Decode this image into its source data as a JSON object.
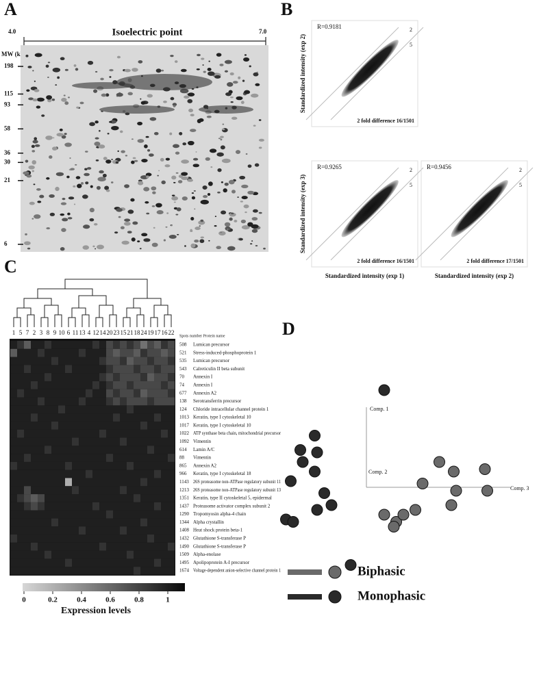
{
  "panel_a": {
    "label": "A",
    "title": "Isoelectric point",
    "ph_range": [
      "4.0",
      "7.0"
    ],
    "mw_label": "MW (kDa)",
    "mw_ticks": [
      198,
      115,
      93,
      58,
      36,
      30,
      21,
      6
    ],
    "mw_lim": [
      6,
      198
    ]
  },
  "panel_b": {
    "label": "B",
    "plots": [
      {
        "r_label": "R=0.9181",
        "fold_label": "2 fold difference 16/1501",
        "y_label": "Standardized intensity (exp 2)",
        "line_labels": [
          "2",
          "5"
        ]
      },
      {
        "r_label": "R=0.9265",
        "fold_label": "2 fold difference 16/1501",
        "y_label": "Standardized intensity (exp 3)",
        "x_label": "Standardized intensity (exp 1)",
        "line_labels": [
          "2",
          "5"
        ]
      },
      {
        "r_label": "R=0.9456",
        "fold_label": "2 fold difference 17/1501",
        "x_label": "Standardized intensity (exp 2)",
        "line_labels": [
          "2",
          "5"
        ]
      }
    ]
  },
  "panel_c": {
    "label": "C",
    "samples": [
      "1",
      "5",
      "7",
      "2",
      "3",
      "8",
      "9",
      "10",
      "6",
      "11",
      "13",
      "4",
      "12",
      "14",
      "20",
      "23",
      "15",
      "21",
      "18",
      "24",
      "19",
      "17",
      "16",
      "22"
    ],
    "header": "Spots number Protein name",
    "proteins": [
      {
        "spot": "508",
        "name": "Lumican precursor"
      },
      {
        "spot": "521",
        "name": "Stress-induced-phosphoprotein 1"
      },
      {
        "spot": "535",
        "name": "Lumican precursor"
      },
      {
        "spot": "543",
        "name": "Calreticulin II beta subunit"
      },
      {
        "spot": "70",
        "name": "Annexin I"
      },
      {
        "spot": "74",
        "name": "Annexin I"
      },
      {
        "spot": "677",
        "name": "Annexin A2"
      },
      {
        "spot": "138",
        "name": "Serotransferrin precursor"
      },
      {
        "spot": "124",
        "name": "Chloride intracellular channel protein 1"
      },
      {
        "spot": "1013",
        "name": "Keratin, type I cytoskeletal 10"
      },
      {
        "spot": "1017",
        "name": "Keratin, type I cytoskeletal 10"
      },
      {
        "spot": "1022",
        "name": "ATP synthase beta chain, mitochondrial precursor"
      },
      {
        "spot": "1092",
        "name": "Vimentin"
      },
      {
        "spot": "614",
        "name": "Lamin A/C"
      },
      {
        "spot": "88",
        "name": "Vimentin"
      },
      {
        "spot": "865",
        "name": "Annexin A2"
      },
      {
        "spot": "966",
        "name": "Keratin, type I cytoskeletal 18"
      },
      {
        "spot": "1143",
        "name": "26S proteasome non-ATPase regulatory subunit 11"
      },
      {
        "spot": "1213",
        "name": "26S proteasome non-ATPase regulatory subunit 13"
      },
      {
        "spot": "1351",
        "name": "Keratin, type II cytoskeletal 5, epidermal"
      },
      {
        "spot": "1437",
        "name": "Proteasome activator complex subunit 2"
      },
      {
        "spot": "1290",
        "name": "Tropomyosin alpha-4 chain"
      },
      {
        "spot": "1344",
        "name": "Alpha crystallin"
      },
      {
        "spot": "1408",
        "name": "Heat shock protein beta-1"
      },
      {
        "spot": "1432",
        "name": "Glutathione S-transferase P"
      },
      {
        "spot": "1490",
        "name": "Glutathione S-transferase P"
      },
      {
        "spot": "1509",
        "name": "Alpha-enolase"
      },
      {
        "spot": "1495",
        "name": "Apolipoprotein A-I precursor"
      },
      {
        "spot": "1674",
        "name": "Voltage-dependent anion-selective channel protein 1"
      }
    ],
    "values": [
      [
        0.9,
        0.8,
        0.6,
        0.9,
        0.9,
        0.8,
        0.9,
        0.9,
        0.9,
        0.9,
        0.9,
        0.9,
        0.8,
        0.9,
        0.7,
        0.8,
        0.7,
        0.8,
        0.7,
        0.5,
        0.7,
        0.6,
        0.8,
        0.7
      ],
      [
        0.6,
        0.9,
        0.9,
        0.9,
        0.8,
        0.9,
        0.9,
        0.9,
        0.9,
        0.9,
        0.8,
        0.9,
        0.9,
        0.9,
        0.7,
        0.6,
        0.7,
        0.7,
        0.6,
        0.8,
        0.7,
        0.7,
        0.6,
        0.7
      ],
      [
        0.9,
        0.9,
        0.9,
        0.9,
        0.9,
        0.9,
        0.8,
        0.9,
        0.9,
        0.9,
        0.9,
        0.9,
        0.9,
        0.8,
        0.7,
        0.7,
        0.8,
        0.6,
        0.7,
        0.7,
        0.8,
        0.7,
        0.7,
        0.8
      ],
      [
        0.9,
        0.9,
        0.8,
        0.9,
        0.9,
        0.9,
        0.9,
        0.9,
        0.8,
        0.9,
        0.9,
        0.9,
        0.9,
        0.9,
        0.8,
        0.7,
        0.7,
        0.7,
        0.8,
        0.7,
        0.7,
        0.8,
        0.7,
        0.7
      ],
      [
        0.9,
        0.9,
        0.9,
        0.9,
        0.9,
        0.8,
        0.9,
        0.9,
        0.9,
        0.9,
        0.9,
        0.9,
        0.9,
        0.8,
        0.7,
        0.8,
        0.7,
        0.7,
        0.7,
        0.8,
        0.6,
        0.7,
        0.7,
        0.8
      ],
      [
        0.9,
        0.9,
        0.9,
        0.8,
        0.9,
        0.9,
        0.9,
        0.9,
        0.9,
        0.9,
        0.9,
        0.9,
        0.8,
        0.9,
        0.8,
        0.7,
        0.7,
        0.8,
        0.7,
        0.7,
        0.7,
        0.7,
        0.8,
        0.7
      ],
      [
        0.9,
        0.8,
        0.9,
        0.9,
        0.9,
        0.9,
        0.9,
        0.9,
        0.9,
        0.9,
        0.9,
        0.8,
        0.9,
        0.9,
        0.7,
        0.8,
        0.7,
        0.7,
        0.8,
        0.6,
        0.7,
        0.7,
        0.7,
        0.8
      ],
      [
        0.9,
        0.9,
        0.9,
        0.9,
        0.8,
        0.9,
        0.9,
        0.9,
        0.9,
        0.9,
        0.8,
        0.9,
        0.9,
        0.9,
        0.8,
        0.7,
        0.8,
        0.7,
        0.7,
        0.7,
        0.8,
        0.7,
        0.7,
        0.7
      ],
      [
        0.9,
        0.9,
        0.9,
        0.9,
        0.9,
        0.9,
        0.9,
        0.8,
        0.9,
        0.9,
        0.9,
        0.9,
        0.9,
        0.9,
        0.9,
        0.9,
        0.9,
        0.8,
        0.9,
        0.9,
        0.9,
        0.9,
        0.9,
        0.9
      ],
      [
        0.9,
        0.9,
        0.9,
        0.8,
        0.9,
        0.9,
        0.9,
        0.9,
        0.9,
        0.9,
        0.9,
        0.9,
        0.9,
        0.9,
        0.9,
        0.8,
        0.9,
        0.9,
        0.9,
        0.9,
        0.9,
        0.8,
        0.9,
        0.9
      ],
      [
        0.9,
        0.9,
        0.9,
        0.9,
        0.9,
        0.9,
        0.8,
        0.9,
        0.9,
        0.9,
        0.9,
        0.9,
        0.9,
        0.9,
        0.9,
        0.9,
        0.9,
        0.9,
        0.9,
        0.8,
        0.9,
        0.9,
        0.9,
        0.9
      ],
      [
        0.9,
        0.8,
        0.9,
        0.9,
        0.9,
        0.9,
        0.9,
        0.9,
        0.9,
        0.9,
        0.9,
        0.9,
        0.9,
        0.8,
        0.9,
        0.9,
        0.9,
        0.9,
        0.9,
        0.9,
        0.9,
        0.9,
        0.8,
        0.9
      ],
      [
        0.9,
        0.9,
        0.9,
        0.9,
        0.9,
        0.9,
        0.9,
        0.9,
        0.9,
        0.8,
        0.9,
        0.9,
        0.9,
        0.9,
        0.9,
        0.9,
        0.8,
        0.9,
        0.9,
        0.9,
        0.9,
        0.9,
        0.9,
        0.9
      ],
      [
        0.9,
        0.9,
        0.9,
        0.9,
        0.9,
        0.8,
        0.9,
        0.9,
        0.9,
        0.9,
        0.9,
        0.9,
        0.9,
        0.9,
        0.9,
        0.9,
        0.9,
        0.9,
        0.9,
        0.9,
        0.8,
        0.9,
        0.9,
        0.9
      ],
      [
        0.9,
        0.9,
        0.8,
        0.9,
        0.9,
        0.9,
        0.9,
        0.9,
        0.9,
        0.9,
        0.9,
        0.9,
        0.9,
        0.9,
        0.8,
        0.9,
        0.9,
        0.9,
        0.9,
        0.9,
        0.9,
        0.9,
        0.9,
        0.8
      ],
      [
        0.8,
        0.9,
        0.9,
        0.9,
        0.9,
        0.9,
        0.9,
        0.9,
        0.8,
        0.9,
        0.9,
        0.9,
        0.9,
        0.9,
        0.9,
        0.9,
        0.9,
        0.8,
        0.9,
        0.9,
        0.9,
        0.9,
        0.9,
        0.9
      ],
      [
        0.9,
        0.9,
        0.9,
        0.9,
        0.9,
        0.9,
        0.9,
        0.9,
        0.9,
        0.9,
        0.9,
        0.8,
        0.9,
        0.9,
        0.9,
        0.9,
        0.9,
        0.9,
        0.9,
        0.9,
        0.9,
        0.8,
        0.9,
        0.9
      ],
      [
        0.9,
        0.9,
        0.9,
        0.9,
        0.9,
        0.9,
        0.9,
        0.9,
        0.2,
        0.9,
        0.9,
        0.9,
        0.9,
        0.9,
        0.9,
        0.9,
        0.9,
        0.9,
        0.9,
        0.8,
        0.9,
        0.9,
        0.9,
        0.9
      ],
      [
        0.9,
        0.9,
        0.7,
        0.9,
        0.9,
        0.9,
        0.9,
        0.9,
        0.9,
        0.8,
        0.9,
        0.9,
        0.9,
        0.9,
        0.9,
        0.9,
        0.8,
        0.9,
        0.9,
        0.9,
        0.9,
        0.9,
        0.9,
        0.9
      ],
      [
        0.9,
        0.8,
        0.7,
        0.6,
        0.7,
        0.9,
        0.9,
        0.9,
        0.9,
        0.9,
        0.9,
        0.9,
        0.9,
        0.9,
        0.9,
        0.9,
        0.9,
        0.9,
        0.8,
        0.9,
        0.9,
        0.9,
        0.9,
        0.9
      ],
      [
        0.9,
        0.9,
        0.8,
        0.7,
        0.8,
        0.9,
        0.9,
        0.9,
        0.9,
        0.9,
        0.9,
        0.9,
        0.8,
        0.9,
        0.9,
        0.9,
        0.9,
        0.9,
        0.9,
        0.9,
        0.9,
        0.8,
        0.9,
        0.9
      ],
      [
        0.9,
        0.9,
        0.9,
        0.9,
        0.9,
        0.9,
        0.9,
        0.9,
        0.9,
        0.9,
        0.9,
        0.9,
        0.9,
        0.9,
        0.8,
        0.9,
        0.9,
        0.9,
        0.9,
        0.9,
        0.9,
        0.9,
        0.9,
        0.9
      ],
      [
        0.9,
        0.9,
        0.9,
        0.9,
        0.9,
        0.9,
        0.8,
        0.9,
        0.9,
        0.9,
        0.9,
        0.9,
        0.9,
        0.9,
        0.9,
        0.9,
        0.9,
        0.9,
        0.9,
        0.8,
        0.9,
        0.9,
        0.9,
        0.9
      ],
      [
        0.9,
        0.9,
        0.9,
        0.9,
        0.9,
        0.9,
        0.9,
        0.9,
        0.9,
        0.9,
        0.8,
        0.9,
        0.9,
        0.9,
        0.9,
        0.9,
        0.8,
        0.9,
        0.9,
        0.9,
        0.9,
        0.9,
        0.9,
        0.9
      ],
      [
        0.8,
        0.9,
        0.9,
        0.9,
        0.9,
        0.9,
        0.9,
        0.9,
        0.9,
        0.9,
        0.9,
        0.9,
        0.9,
        0.9,
        0.9,
        0.9,
        0.9,
        0.9,
        0.9,
        0.9,
        0.8,
        0.9,
        0.9,
        0.9
      ],
      [
        0.9,
        0.9,
        0.9,
        0.8,
        0.9,
        0.9,
        0.9,
        0.9,
        0.9,
        0.9,
        0.9,
        0.9,
        0.9,
        0.8,
        0.9,
        0.9,
        0.9,
        0.9,
        0.9,
        0.9,
        0.9,
        0.9,
        0.9,
        0.8
      ],
      [
        0.9,
        0.9,
        0.9,
        0.9,
        0.9,
        0.8,
        0.9,
        0.9,
        0.9,
        0.9,
        0.9,
        0.9,
        0.9,
        0.9,
        0.9,
        0.9,
        0.9,
        0.8,
        0.9,
        0.9,
        0.9,
        0.9,
        0.9,
        0.9
      ],
      [
        0.9,
        0.9,
        0.9,
        0.9,
        0.9,
        0.9,
        0.9,
        0.9,
        0.8,
        0.9,
        0.9,
        0.9,
        0.9,
        0.9,
        0.9,
        0.9,
        0.9,
        0.9,
        0.9,
        0.9,
        0.9,
        0.8,
        0.9,
        0.9
      ],
      [
        0.9,
        0.9,
        0.9,
        0.9,
        0.9,
        0.9,
        0.9,
        0.9,
        0.9,
        0.9,
        0.9,
        0.9,
        0.9,
        0.9,
        0.9,
        0.9,
        0.9,
        0.9,
        0.8,
        0.9,
        0.9,
        0.9,
        0.9,
        0.9
      ]
    ],
    "colorbar": {
      "label": "Expression levels",
      "lim": [
        0,
        1
      ],
      "ticks": [
        0,
        0.2,
        0.4,
        0.6,
        0.8,
        1
      ]
    }
  },
  "chart_data": {
    "type": "scatter",
    "panel_label": "D",
    "axis_labels": [
      "Comp. 1",
      "Comp. 2",
      "Comp. 3"
    ],
    "xlim": [
      0,
      100
    ],
    "ylim": [
      0,
      100
    ],
    "series": [
      {
        "name": "Biphasic",
        "color": "#6a6a6a",
        "x": [
          46,
          51,
          50,
          54,
          59,
          62,
          69,
          75,
          76,
          74,
          88,
          89
        ],
        "y": [
          28,
          25,
          23,
          28,
          30,
          41,
          50,
          46,
          38,
          32,
          47,
          38
        ]
      },
      {
        "name": "Monophasic",
        "color": "#2a2a2a",
        "x": [
          46,
          17,
          11,
          12,
          17,
          18,
          7,
          21,
          18,
          24,
          5,
          8,
          32
        ],
        "y": [
          80,
          61,
          55,
          50,
          46,
          54,
          42,
          37,
          30,
          32,
          26,
          25,
          7
        ]
      }
    ]
  }
}
